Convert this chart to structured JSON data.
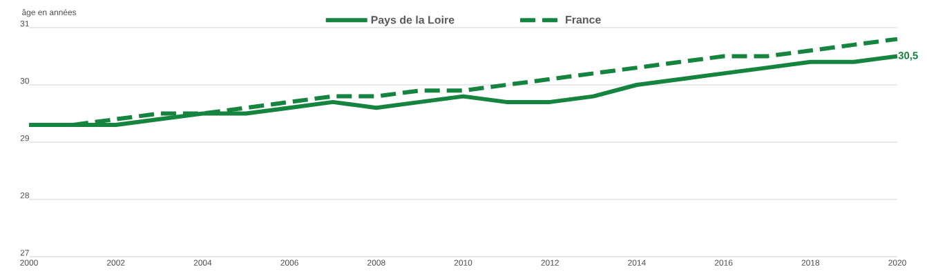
{
  "chart_data": {
    "type": "line",
    "ylabel": "âge en années",
    "x": [
      2000,
      2001,
      2002,
      2003,
      2004,
      2005,
      2006,
      2007,
      2008,
      2009,
      2010,
      2011,
      2012,
      2013,
      2014,
      2015,
      2016,
      2017,
      2018,
      2019,
      2020
    ],
    "series": [
      {
        "name": "Pays de la Loire",
        "color": "#14843f",
        "line_style": "solid",
        "values": [
          29.3,
          29.3,
          29.3,
          29.4,
          29.5,
          29.5,
          29.6,
          29.7,
          29.6,
          29.7,
          29.8,
          29.7,
          29.7,
          29.8,
          30.0,
          30.1,
          30.2,
          30.3,
          30.4,
          30.4,
          30.5
        ]
      },
      {
        "name": "France",
        "color": "#14843f",
        "line_style": "dashed",
        "values": [
          29.3,
          29.3,
          29.4,
          29.5,
          29.5,
          29.6,
          29.7,
          29.8,
          29.8,
          29.9,
          29.9,
          30.0,
          30.1,
          30.2,
          30.3,
          30.4,
          30.5,
          30.5,
          30.6,
          30.7,
          30.8
        ]
      }
    ],
    "xlim": [
      2000,
      2020
    ],
    "xticks": [
      2000,
      2002,
      2004,
      2006,
      2008,
      2010,
      2012,
      2014,
      2016,
      2018,
      2020
    ],
    "ylim": [
      27,
      31
    ],
    "yticks": [
      27,
      28,
      29,
      30,
      31
    ],
    "grid": "y",
    "legend": "top",
    "marker": "none",
    "annotations": [
      {
        "text": "30,5",
        "x": 2020,
        "y": 30.5
      }
    ]
  }
}
